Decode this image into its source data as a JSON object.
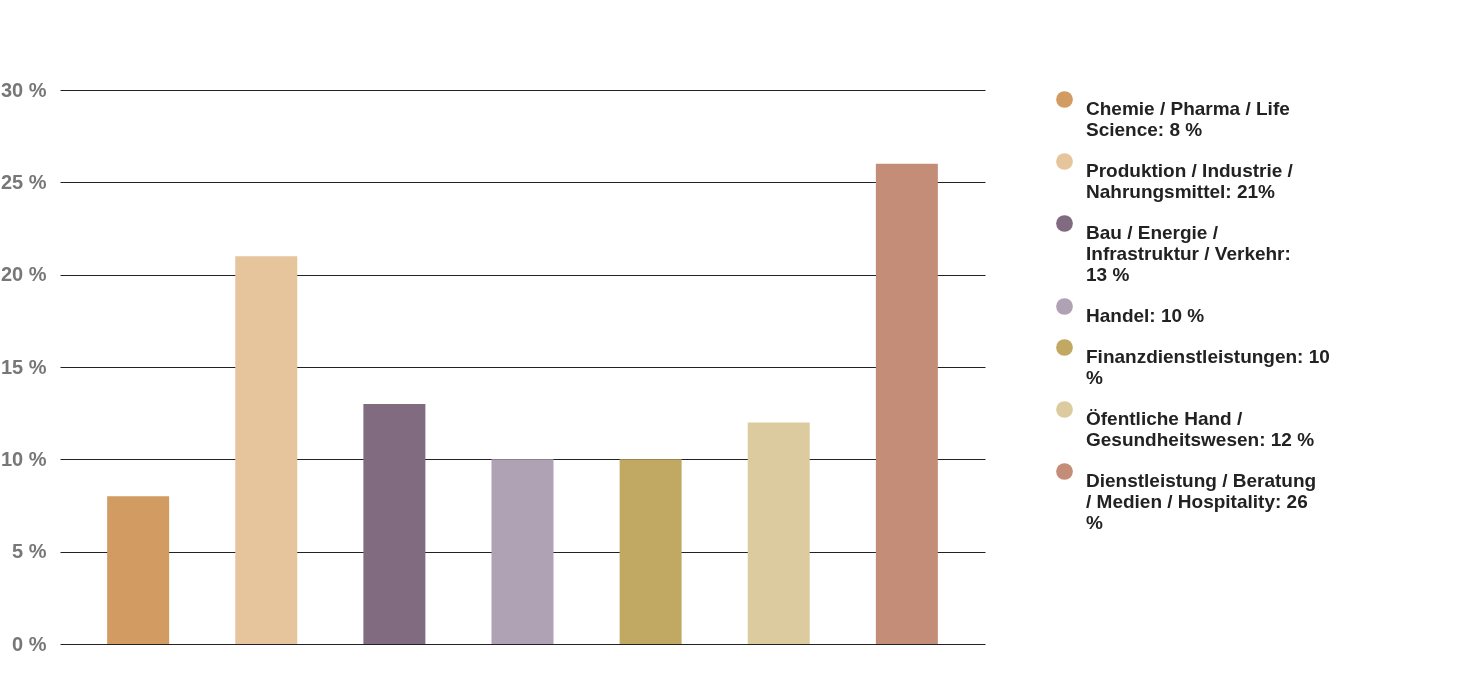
{
  "chart_data": {
    "type": "bar",
    "categories": [
      null,
      null,
      null,
      null,
      null,
      null,
      null
    ],
    "series": [
      {
        "name": "Chemie / Pharma / Life Science: 8 %",
        "color": "#d29b62",
        "values": [
          8,
          null,
          null,
          null,
          null,
          null,
          null
        ]
      },
      {
        "name": "Produktion / Industrie / Nahrungsmittel: 21%",
        "color": "#e6c49c",
        "values": [
          null,
          21,
          null,
          null,
          null,
          null,
          null
        ]
      },
      {
        "name": "Bau / Energie / Infrastruktur / Verkehr: 13 %",
        "color": "#806b80",
        "values": [
          null,
          null,
          13,
          null,
          null,
          null,
          null
        ]
      },
      {
        "name": "Handel: 10 %",
        "color": "#b0a2b5",
        "values": [
          null,
          null,
          null,
          10,
          null,
          null,
          null
        ]
      },
      {
        "name": "Finanzdienstleistungen: 10 %",
        "color": "#c1a964",
        "values": [
          null,
          null,
          null,
          null,
          10,
          null,
          null
        ]
      },
      {
        "name": "Öfentliche Hand / Gesundheitswesen: 12 %",
        "color": "#dccb9f",
        "values": [
          null,
          null,
          null,
          null,
          null,
          12,
          null
        ]
      },
      {
        "name": "Dienstleistung / Beratung / Medien / Hospitality: 26 %",
        "color": "#c48d77",
        "values": [
          null,
          null,
          null,
          null,
          null,
          null,
          26
        ]
      }
    ],
    "ylim": [
      0,
      30
    ],
    "yticks": [
      {
        "value": 0,
        "label": "0 %"
      },
      {
        "value": 5,
        "label": "5 %"
      },
      {
        "value": 10,
        "label": "10 %"
      },
      {
        "value": 15,
        "label": "15 %"
      },
      {
        "value": 20,
        "label": "20 %"
      },
      {
        "value": 25,
        "label": "25 %"
      },
      {
        "value": 30,
        "label": "30 %"
      }
    ],
    "grid": "y",
    "legend": "right",
    "tick_labels": "y"
  }
}
